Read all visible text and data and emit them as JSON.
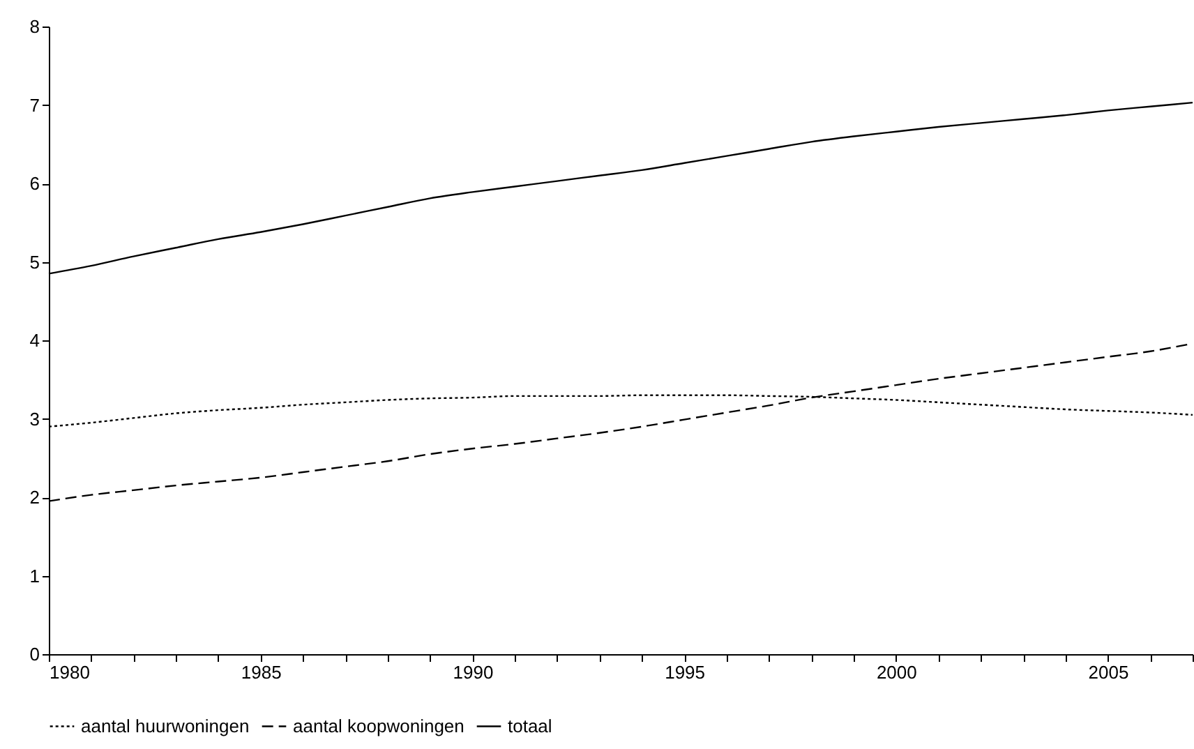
{
  "chart_data": {
    "type": "line",
    "x": [
      1980,
      1981,
      1982,
      1983,
      1984,
      1985,
      1986,
      1987,
      1988,
      1989,
      1990,
      1991,
      1992,
      1993,
      1994,
      1995,
      1996,
      1997,
      1998,
      1999,
      2000,
      2001,
      2002,
      2003,
      2004,
      2005,
      2006,
      2007
    ],
    "series": [
      {
        "name": "aantal huurwoningen",
        "color": "#000000",
        "line_style": "dotted",
        "values": [
          2.9,
          2.95,
          3.01,
          3.07,
          3.11,
          3.14,
          3.18,
          3.21,
          3.24,
          3.26,
          3.27,
          3.29,
          3.29,
          3.29,
          3.3,
          3.3,
          3.3,
          3.29,
          3.28,
          3.26,
          3.24,
          3.21,
          3.18,
          3.15,
          3.12,
          3.1,
          3.08,
          3.05
        ]
      },
      {
        "name": "aantal koopwoningen",
        "color": "#000000",
        "line_style": "dashed",
        "values": [
          1.95,
          2.03,
          2.09,
          2.15,
          2.2,
          2.25,
          2.32,
          2.39,
          2.46,
          2.55,
          2.62,
          2.68,
          2.75,
          2.82,
          2.9,
          2.99,
          3.08,
          3.17,
          3.27,
          3.35,
          3.43,
          3.51,
          3.58,
          3.65,
          3.72,
          3.79,
          3.86,
          3.96
        ]
      },
      {
        "name": "totaal",
        "color": "#000000",
        "line_style": "solid",
        "values": [
          4.85,
          4.95,
          5.07,
          5.18,
          5.29,
          5.38,
          5.48,
          5.59,
          5.7,
          5.81,
          5.89,
          5.96,
          6.03,
          6.1,
          6.17,
          6.26,
          6.35,
          6.44,
          6.53,
          6.6,
          6.66,
          6.72,
          6.77,
          6.82,
          6.87,
          6.93,
          6.98,
          7.03
        ]
      }
    ],
    "xlim": [
      1980,
      2007
    ],
    "xticks": [
      1980,
      {
        "value": 1981,
        "label": null
      },
      {
        "value": 1982,
        "label": null
      },
      {
        "value": 1983,
        "label": null
      },
      {
        "value": 1984,
        "label": null
      },
      1985,
      {
        "value": 1986,
        "label": null
      },
      {
        "value": 1987,
        "label": null
      },
      {
        "value": 1988,
        "label": null
      },
      {
        "value": 1989,
        "label": null
      },
      1990,
      {
        "value": 1991,
        "label": null
      },
      {
        "value": 1992,
        "label": null
      },
      {
        "value": 1993,
        "label": null
      },
      {
        "value": 1994,
        "label": null
      },
      1995,
      {
        "value": 1996,
        "label": null
      },
      {
        "value": 1997,
        "label": null
      },
      {
        "value": 1998,
        "label": null
      },
      {
        "value": 1999,
        "label": null
      },
      2000,
      {
        "value": 2001,
        "label": null
      },
      {
        "value": 2002,
        "label": null
      },
      {
        "value": 2003,
        "label": null
      },
      {
        "value": 2004,
        "label": null
      },
      2005,
      {
        "value": 2006,
        "label": null
      },
      {
        "value": 2007,
        "label": null
      }
    ],
    "ylim": [
      0,
      8
    ],
    "yticks": [
      0,
      1,
      2,
      3,
      4,
      5,
      6,
      7,
      8
    ],
    "grid": false,
    "legend": "bottom"
  }
}
